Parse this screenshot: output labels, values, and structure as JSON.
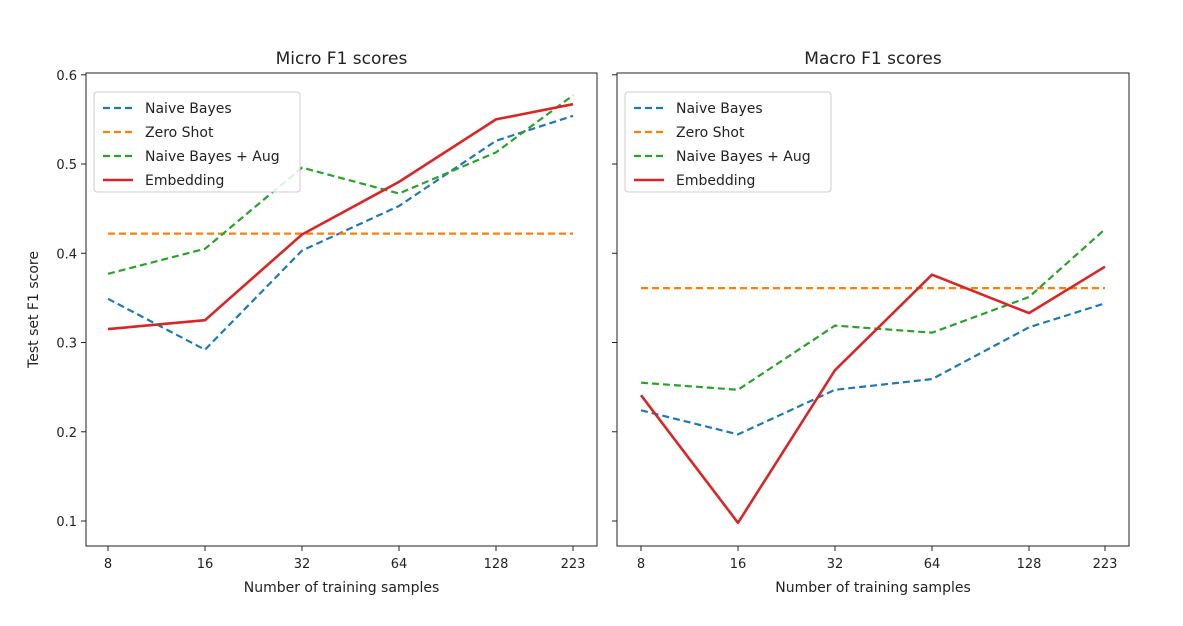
{
  "chart_data": [
    {
      "type": "line",
      "title": "Micro F1 scores",
      "xlabel": "Number of training samples",
      "ylabel": "Test set F1 score",
      "categories": [
        "8",
        "16",
        "32",
        "64",
        "128",
        "223"
      ],
      "yticks": [
        0.1,
        0.2,
        0.3,
        0.4,
        0.5,
        0.6
      ],
      "ylim": [
        0.072,
        0.602
      ],
      "legend_position": "top-left",
      "series": [
        {
          "name": "Naive Bayes",
          "color": "#1f77b4",
          "style": "dashed",
          "values": [
            0.349,
            0.292,
            0.403,
            0.453,
            0.526,
            0.554
          ]
        },
        {
          "name": "Zero Shot",
          "color": "#ff7f0e",
          "style": "dashed",
          "values": [
            0.422,
            0.422,
            0.422,
            0.422,
            0.422,
            0.422
          ]
        },
        {
          "name": "Naive Bayes + Aug",
          "color": "#2ca02c",
          "style": "dashed",
          "values": [
            0.377,
            0.405,
            0.496,
            0.467,
            0.513,
            0.577
          ]
        },
        {
          "name": "Embedding",
          "color": "#d62728",
          "style": "solid",
          "values": [
            0.315,
            0.325,
            0.421,
            0.48,
            0.55,
            0.567
          ]
        }
      ]
    },
    {
      "type": "line",
      "title": "Macro F1 scores",
      "xlabel": "Number of training samples",
      "ylabel": "",
      "categories": [
        "8",
        "16",
        "32",
        "64",
        "128",
        "223"
      ],
      "yticks": [
        0.1,
        0.2,
        0.3,
        0.4,
        0.5,
        0.6
      ],
      "ylim": [
        0.072,
        0.602
      ],
      "legend_position": "top-left",
      "series": [
        {
          "name": "Naive Bayes",
          "color": "#1f77b4",
          "style": "dashed",
          "values": [
            0.224,
            0.197,
            0.247,
            0.259,
            0.317,
            0.344
          ]
        },
        {
          "name": "Zero Shot",
          "color": "#ff7f0e",
          "style": "dashed",
          "values": [
            0.361,
            0.361,
            0.361,
            0.361,
            0.361,
            0.361
          ]
        },
        {
          "name": "Naive Bayes + Aug",
          "color": "#2ca02c",
          "style": "dashed",
          "values": [
            0.255,
            0.247,
            0.319,
            0.311,
            0.351,
            0.427
          ]
        },
        {
          "name": "Embedding",
          "color": "#d62728",
          "style": "solid",
          "values": [
            0.241,
            0.098,
            0.269,
            0.376,
            0.333,
            0.385
          ]
        }
      ]
    }
  ]
}
